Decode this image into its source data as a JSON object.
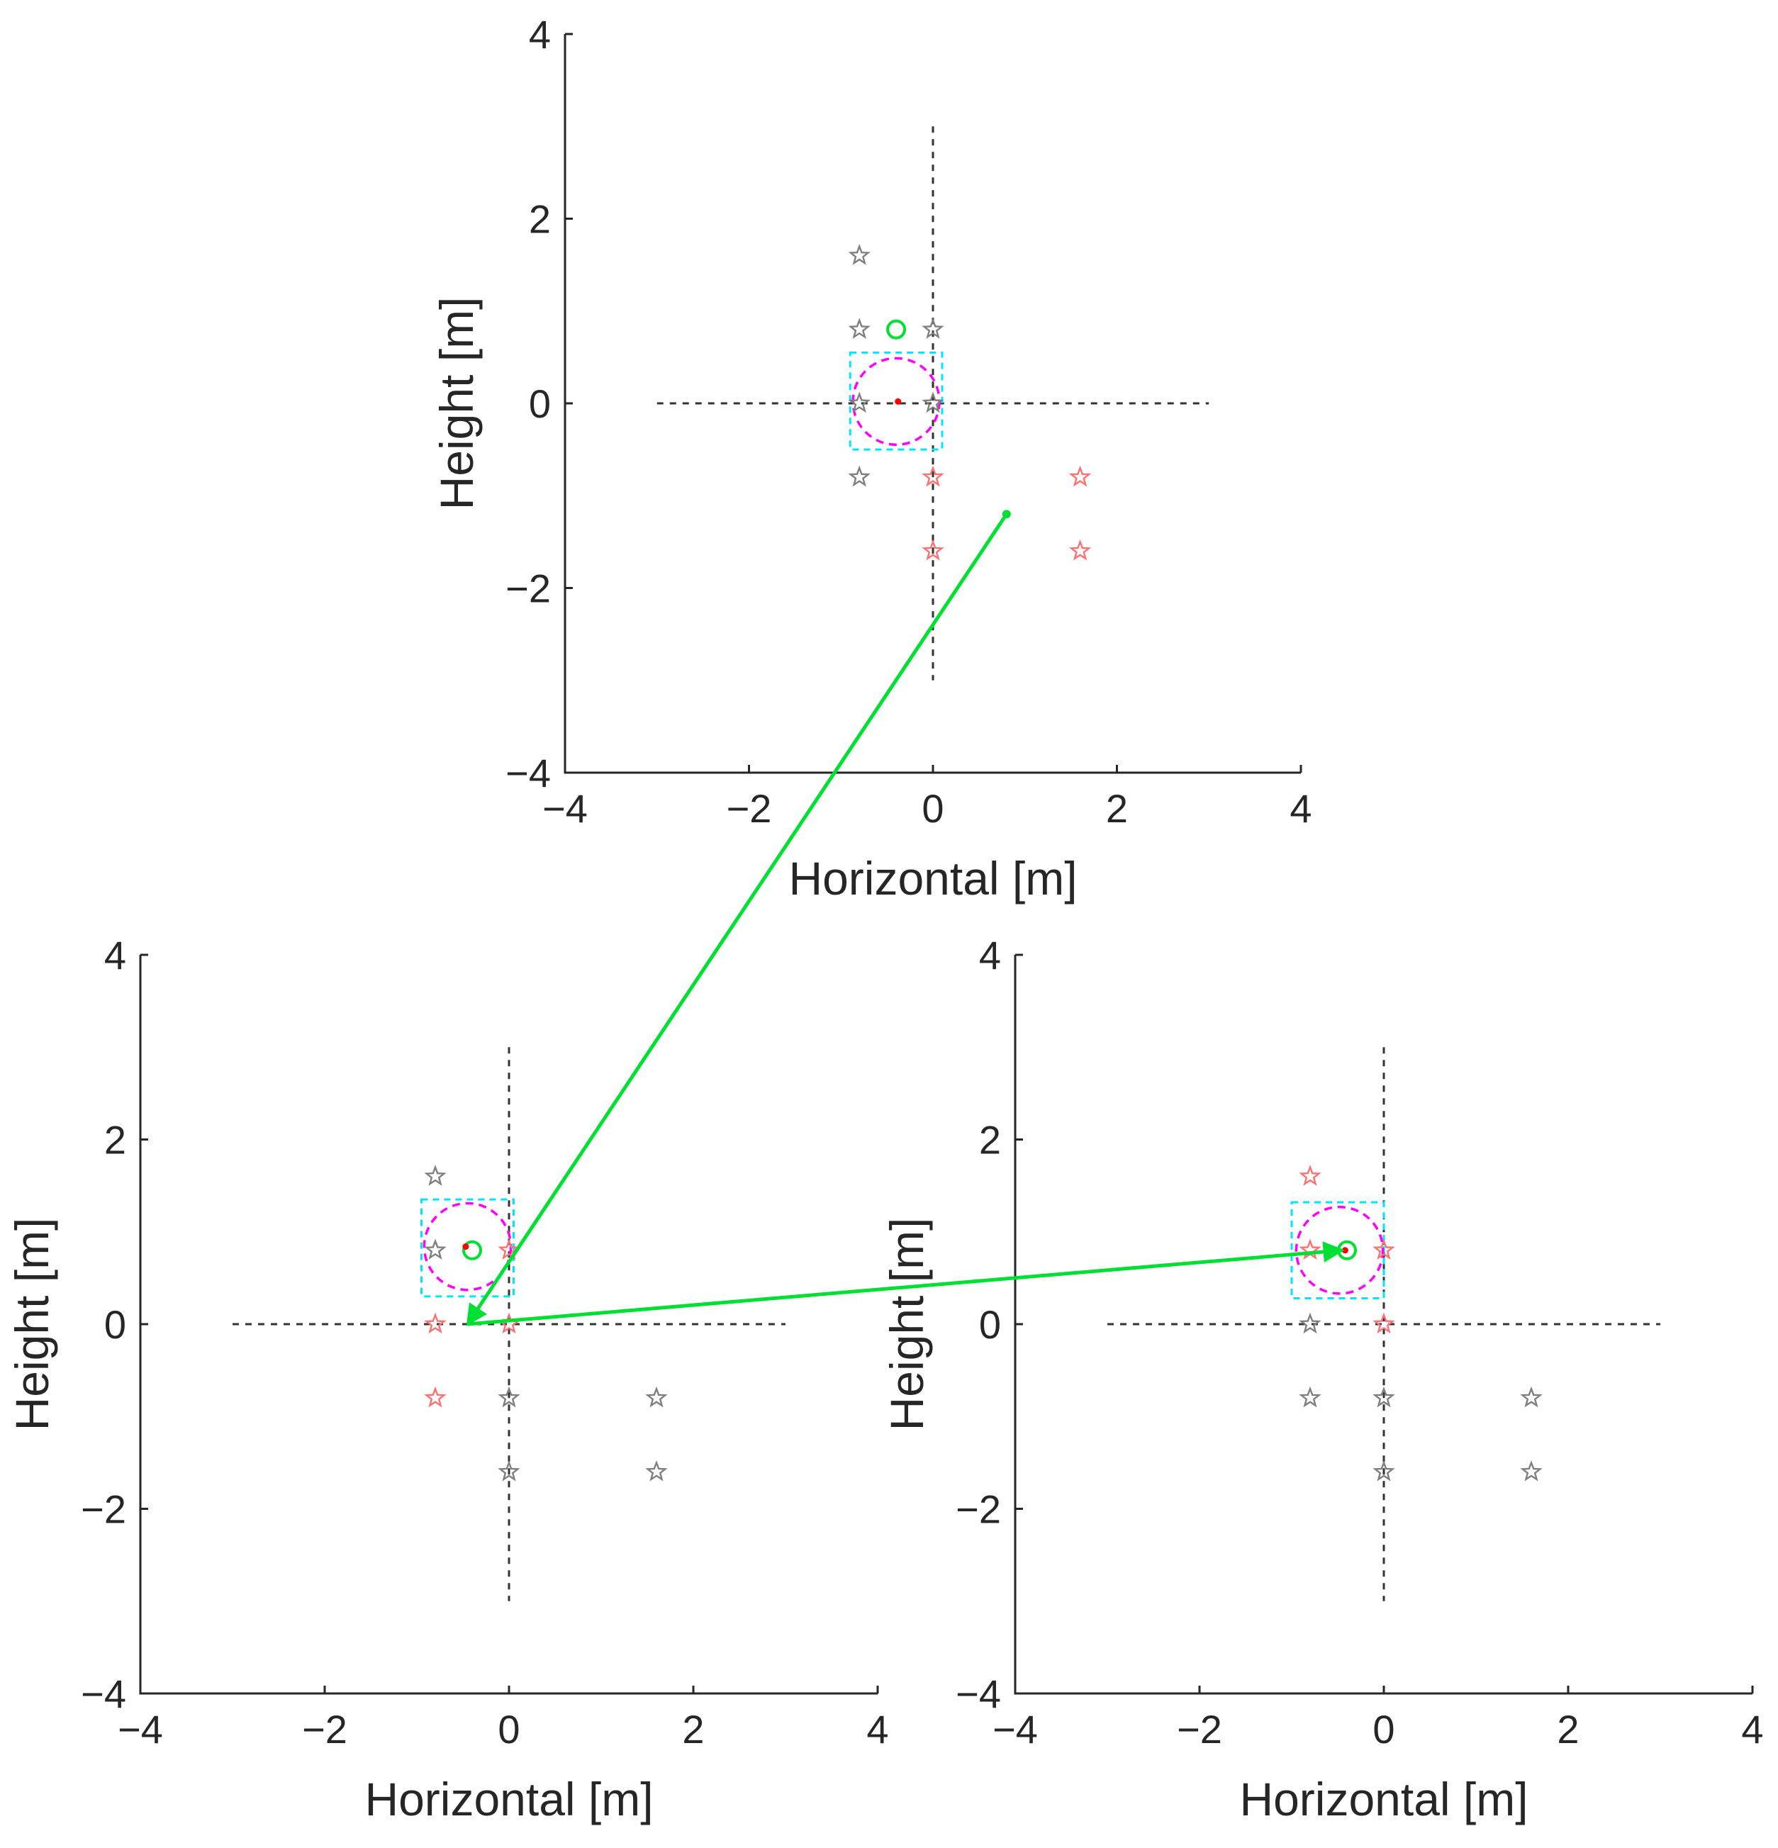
{
  "colors": {
    "star_gray": "#7f7f7f",
    "star_red": "#ff7070",
    "cyan": "#00e5ff",
    "magenta": "#ff00ff",
    "green": "#00e033",
    "dot_red": "#ff0000",
    "axis": "#262626"
  },
  "chart_data": [
    {
      "id": "top",
      "type": "scatter",
      "xlabel": "Horizontal [m]",
      "ylabel": "Height [m]",
      "xlim": [
        -4,
        4
      ],
      "ylim": [
        -4,
        4
      ],
      "xticks": [
        -4,
        -2,
        0,
        2,
        4
      ],
      "yticks": [
        -4,
        -2,
        0,
        2,
        4
      ],
      "xtick_labels": [
        "−4",
        "−2",
        "0",
        "2",
        "4"
      ],
      "ytick_labels": [
        "−4",
        "−2",
        "0",
        "2",
        "4"
      ],
      "crosshair": {
        "x_range": [
          -3,
          3
        ],
        "y_range": [
          -3,
          3
        ]
      },
      "stars_gray": [
        [
          -0.8,
          1.6
        ],
        [
          -0.8,
          0.8
        ],
        [
          0,
          0.8
        ],
        [
          -0.8,
          0
        ],
        [
          0,
          0
        ],
        [
          -0.8,
          -0.8
        ]
      ],
      "stars_red": [
        [
          0,
          -0.8
        ],
        [
          1.6,
          -0.8
        ],
        [
          0,
          -1.6
        ],
        [
          1.6,
          -1.6
        ]
      ],
      "search_box": {
        "x": [
          -0.9,
          0.1
        ],
        "y": [
          -0.5,
          0.55
        ]
      },
      "search_circle": {
        "cx": -0.4,
        "cy": 0.02,
        "r": 0.47
      },
      "target_circle": {
        "x": -0.4,
        "y": 0.8
      },
      "estimate_dot": {
        "x": -0.38,
        "y": 0.02
      },
      "source_point": {
        "x": 0.8,
        "y": -1.2
      }
    },
    {
      "id": "bottom_left",
      "type": "scatter",
      "xlabel": "Horizontal [m]",
      "ylabel": "Height [m]",
      "xlim": [
        -4,
        4
      ],
      "ylim": [
        -4,
        4
      ],
      "xticks": [
        -4,
        -2,
        0,
        2,
        4
      ],
      "yticks": [
        -4,
        -2,
        0,
        2,
        4
      ],
      "xtick_labels": [
        "−4",
        "−2",
        "0",
        "2",
        "4"
      ],
      "ytick_labels": [
        "−4",
        "−2",
        "0",
        "2",
        "4"
      ],
      "crosshair": {
        "x_range": [
          -3,
          3
        ],
        "y_range": [
          -3,
          3
        ]
      },
      "stars_gray": [
        [
          -0.8,
          1.6
        ],
        [
          -0.8,
          0.8
        ],
        [
          0,
          -0.8
        ],
        [
          1.6,
          -0.8
        ],
        [
          0,
          -1.6
        ],
        [
          1.6,
          -1.6
        ]
      ],
      "stars_red": [
        [
          0,
          0.8
        ],
        [
          -0.8,
          0
        ],
        [
          0,
          0
        ],
        [
          -0.8,
          -0.8
        ]
      ],
      "search_box": {
        "x": [
          -0.95,
          0.05
        ],
        "y": [
          0.3,
          1.35
        ]
      },
      "search_circle": {
        "cx": -0.45,
        "cy": 0.84,
        "r": 0.47
      },
      "target_circle": {
        "x": -0.4,
        "y": 0.8
      },
      "estimate_dot": {
        "x": -0.47,
        "y": 0.84
      },
      "arrow_landing": {
        "x": -0.45,
        "y": 0.0
      }
    },
    {
      "id": "bottom_right",
      "type": "scatter",
      "xlabel": "Horizontal [m]",
      "ylabel": "Height [m]",
      "xlim": [
        -4,
        4
      ],
      "ylim": [
        -4,
        4
      ],
      "xticks": [
        -4,
        -2,
        0,
        2,
        4
      ],
      "yticks": [
        -4,
        -2,
        0,
        2,
        4
      ],
      "xtick_labels": [
        "−4",
        "−2",
        "0",
        "2",
        "4"
      ],
      "ytick_labels": [
        "−4",
        "−2",
        "0",
        "2",
        "4"
      ],
      "crosshair": {
        "x_range": [
          -3,
          3
        ],
        "y_range": [
          -3,
          3
        ]
      },
      "stars_gray": [
        [
          -0.8,
          0
        ],
        [
          -0.8,
          -0.8
        ],
        [
          0,
          -0.8
        ],
        [
          1.6,
          -0.8
        ],
        [
          0,
          -1.6
        ],
        [
          1.6,
          -1.6
        ]
      ],
      "stars_red": [
        [
          -0.8,
          1.6
        ],
        [
          -0.8,
          0.8
        ],
        [
          0,
          0.8
        ],
        [
          0,
          0
        ]
      ],
      "search_box": {
        "x": [
          -1.0,
          0.0
        ],
        "y": [
          0.28,
          1.32
        ]
      },
      "search_circle": {
        "cx": -0.48,
        "cy": 0.8,
        "r": 0.47
      },
      "target_circle": {
        "x": -0.4,
        "y": 0.8
      },
      "estimate_dot": {
        "x": -0.42,
        "y": 0.8
      },
      "arrow_landing": {
        "x": -0.45,
        "y": 0.8
      }
    }
  ],
  "flow_arrows": [
    {
      "from": {
        "panel": "top",
        "x": 0.8,
        "y": -1.2
      },
      "to": {
        "panel": "bottom_left",
        "x": -0.45,
        "y": 0.0
      }
    },
    {
      "from": {
        "panel": "bottom_left",
        "x": -0.45,
        "y": 0.0
      },
      "to": {
        "panel": "bottom_right",
        "x": -0.45,
        "y": 0.8
      }
    }
  ]
}
